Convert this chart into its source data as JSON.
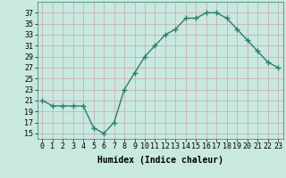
{
  "x": [
    0,
    1,
    2,
    3,
    4,
    5,
    6,
    7,
    8,
    9,
    10,
    11,
    12,
    13,
    14,
    15,
    16,
    17,
    18,
    19,
    20,
    21,
    22,
    23
  ],
  "y": [
    21,
    20,
    20,
    20,
    20,
    16,
    15,
    17,
    23,
    26,
    29,
    31,
    33,
    34,
    36,
    36,
    37,
    37,
    36,
    34,
    32,
    30,
    28,
    27
  ],
  "line_color": "#2d7d6e",
  "marker": "+",
  "marker_size": 4,
  "bg_color": "#c8e8e0",
  "grid_color": "#c8a8a8",
  "xlabel": "Humidex (Indice chaleur)",
  "xlim": [
    -0.5,
    23.5
  ],
  "ylim": [
    14,
    39
  ],
  "yticks": [
    15,
    17,
    19,
    21,
    23,
    25,
    27,
    29,
    31,
    33,
    35,
    37
  ],
  "xtick_labels": [
    "0",
    "1",
    "2",
    "3",
    "4",
    "5",
    "6",
    "7",
    "8",
    "9",
    "10",
    "11",
    "12",
    "13",
    "14",
    "15",
    "16",
    "17",
    "18",
    "19",
    "20",
    "21",
    "22",
    "23"
  ],
  "xlabel_fontsize": 7,
  "tick_fontsize": 6,
  "lw": 1.0
}
